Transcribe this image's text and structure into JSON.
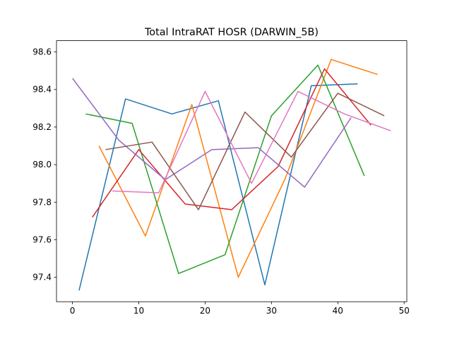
{
  "chart_data": {
    "type": "line",
    "title": "Total IntraRAT HOSR (DARWIN_5B)",
    "xlabel": "",
    "ylabel": "",
    "xlim": [
      -2.4,
      50.4
    ],
    "ylim": [
      97.27,
      98.66
    ],
    "xticks": [
      0,
      10,
      20,
      30,
      40,
      50
    ],
    "yticks": [
      97.4,
      97.6,
      97.8,
      98.0,
      98.2,
      98.4,
      98.6
    ],
    "ytick_labels": [
      "97.4",
      "97.6",
      "97.8",
      "98.0",
      "98.2",
      "98.4",
      "98.6"
    ],
    "grid": false,
    "legend": "none",
    "series": [
      {
        "color": "#1f77b4",
        "x": [
          1,
          8,
          15,
          22,
          29,
          36,
          43
        ],
        "y": [
          97.33,
          98.35,
          98.27,
          98.34,
          97.36,
          98.42,
          98.43
        ]
      },
      {
        "color": "#ff7f0e",
        "x": [
          4,
          11,
          18,
          25,
          32,
          39,
          46
        ],
        "y": [
          98.1,
          97.62,
          98.32,
          97.4,
          97.92,
          98.56,
          98.48
        ]
      },
      {
        "color": "#2ca02c",
        "x": [
          2,
          9,
          16,
          23,
          30,
          37,
          44
        ],
        "y": [
          98.27,
          98.22,
          97.42,
          97.52,
          98.26,
          98.53,
          97.94
        ]
      },
      {
        "color": "#d62728",
        "x": [
          3,
          10,
          17,
          24,
          31,
          38,
          45
        ],
        "y": [
          97.72,
          98.08,
          97.79,
          97.76,
          97.99,
          98.51,
          98.21
        ]
      },
      {
        "color": "#9467bd",
        "x": [
          0,
          7,
          14,
          21,
          28,
          35,
          42
        ],
        "y": [
          98.46,
          98.13,
          97.92,
          98.08,
          98.09,
          97.88,
          98.25
        ]
      },
      {
        "color": "#8c564b",
        "x": [
          5,
          12,
          19,
          26,
          33,
          40,
          47
        ],
        "y": [
          98.08,
          98.12,
          97.76,
          98.28,
          98.04,
          98.38,
          98.26
        ]
      },
      {
        "color": "#e377c2",
        "x": [
          6,
          13,
          20,
          27,
          34,
          41,
          48
        ],
        "y": [
          97.86,
          97.85,
          98.39,
          97.9,
          98.39,
          98.27,
          98.18
        ]
      }
    ]
  }
}
